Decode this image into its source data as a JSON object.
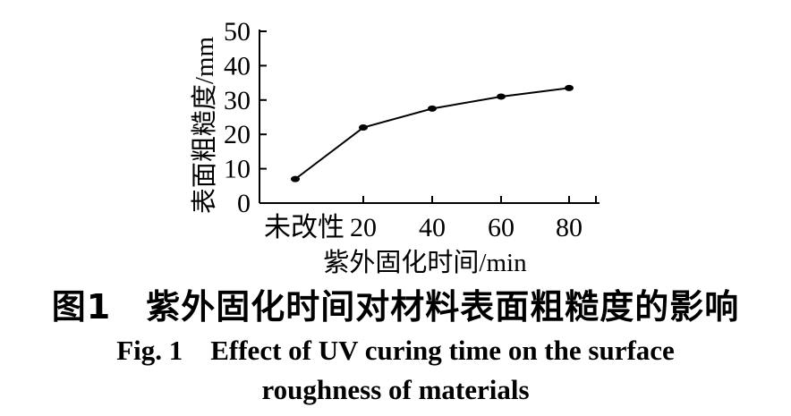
{
  "chart_data": {
    "type": "line",
    "categories": [
      "未改性",
      "20",
      "40",
      "60",
      "80"
    ],
    "values": [
      7,
      22,
      27.5,
      31,
      33.5
    ],
    "ylabel": "表面粗糙度/mm",
    "xlabel": "紫外固化时间/min",
    "ylim": [
      0,
      50
    ],
    "yticks": [
      0,
      10,
      20,
      30,
      40,
      50
    ],
    "grid": false
  },
  "caption": {
    "zh": "图1　紫外固化时间对材料表面粗糙度的影响",
    "en_line1": "Fig. 1　Effect of UV curing time on the surface",
    "en_line2": "roughness of materials"
  }
}
